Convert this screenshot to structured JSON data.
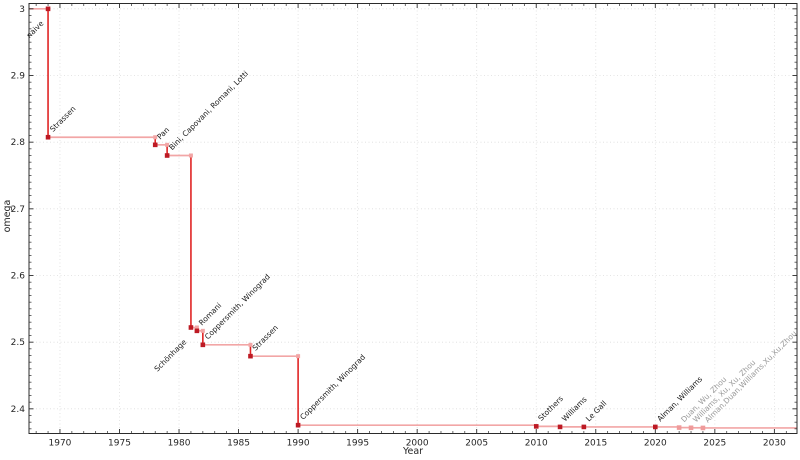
{
  "figure": {
    "title": "",
    "xlabel": "Year",
    "ylabel": "omega"
  },
  "chart_data": {
    "type": "line",
    "subtype": "step-post",
    "title": "",
    "xlabel": "Year",
    "ylabel": "omega",
    "grid": true,
    "legend": false,
    "xlim": [
      1967.4,
      2031.9
    ],
    "ylim": [
      2.363,
      3.008
    ],
    "x_tick_values": [
      1970,
      1975,
      1980,
      1985,
      1990,
      1995,
      2000,
      2005,
      2010,
      2015,
      2020,
      2025,
      2030
    ],
    "x_tick_labels": [
      "1970",
      "1975",
      "1980",
      "1985",
      "1990",
      "1995",
      "2000",
      "2005",
      "2010",
      "2015",
      "2020",
      "2025",
      "2030"
    ],
    "y_tick_values": [
      2.4,
      2.5,
      2.6,
      2.7,
      2.8,
      2.9,
      3.0
    ],
    "y_tick_labels": [
      "2.4",
      "2.5",
      "2.6",
      "2.7",
      "2.8",
      "2.9",
      "3"
    ],
    "points": [
      {
        "year": 1969,
        "omega": 3.0,
        "label": "naive",
        "status": "established",
        "label_side": "lower-left"
      },
      {
        "year": 1969,
        "omega": 2.8074,
        "label": "Strassen",
        "status": "established",
        "label_side": "upper-right"
      },
      {
        "year": 1978,
        "omega": 2.796,
        "label": "Pan",
        "status": "established",
        "label_side": "upper-right"
      },
      {
        "year": 1979,
        "omega": 2.78,
        "label": "Bini, Capovani, Romani, Lotti",
        "status": "established",
        "label_side": "upper-right"
      },
      {
        "year": 1981,
        "omega": 2.522,
        "label": "Schönhage",
        "status": "established",
        "label_side": "lower-left"
      },
      {
        "year": 1981.5,
        "omega": 2.517,
        "label": "Romani",
        "status": "established",
        "label_side": "upper-right"
      },
      {
        "year": 1982,
        "omega": 2.496,
        "label": "Coppersmith, Winograd",
        "status": "established",
        "label_side": "upper-right"
      },
      {
        "year": 1986,
        "omega": 2.479,
        "label": "Strassen",
        "status": "established",
        "label_side": "upper-right"
      },
      {
        "year": 1990,
        "omega": 2.3755,
        "label": "Coppersmith, Winograd",
        "status": "established",
        "label_side": "upper-right"
      },
      {
        "year": 2010,
        "omega": 2.3737,
        "label": "Stothers",
        "status": "established",
        "label_side": "upper-right"
      },
      {
        "year": 2012,
        "omega": 2.3729,
        "label": "Williams",
        "status": "established",
        "label_side": "upper-right"
      },
      {
        "year": 2014,
        "omega": 2.3728639,
        "label": "Le Gall",
        "status": "established",
        "label_side": "upper-right"
      },
      {
        "year": 2020,
        "omega": 2.3728596,
        "label": "Alman, Williams",
        "status": "established",
        "label_side": "upper-right"
      },
      {
        "year": 2022,
        "omega": 2.371866,
        "label": "Duan, Wu, Zhou",
        "status": "recent",
        "label_side": "upper-right"
      },
      {
        "year": 2023,
        "omega": 2.371552,
        "label": "Williams, Xu, Xu, Zhou",
        "status": "recent",
        "label_side": "upper-right"
      },
      {
        "year": 2024,
        "omega": 2.371339,
        "label": "Alman,Duan,Williams,Xu,Xu,Zhou",
        "status": "recent",
        "label_side": "upper-right"
      }
    ],
    "colors": {
      "line_vertical": "#e02424",
      "line_horizontal": "#f2a6a6",
      "marker_established": "#bd1a24",
      "marker_recent": "#ef9a9a",
      "corner_marker": "#f2a6a6",
      "label_established": "#1a1a1a",
      "label_recent": "#9a9a9a",
      "grid": "#dddddd",
      "spine": "#2b2b2b",
      "tick_label": "#262626"
    }
  }
}
